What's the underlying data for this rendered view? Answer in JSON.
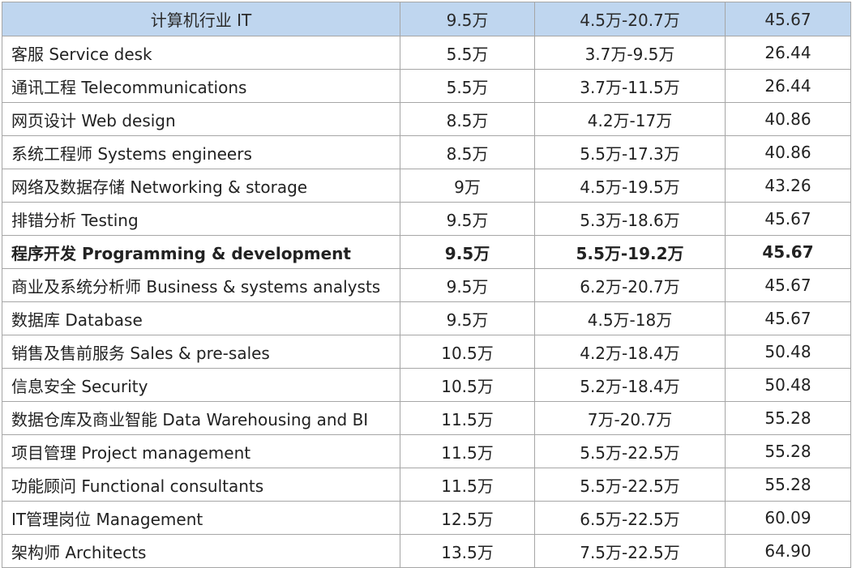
{
  "colors": {
    "header_background": "#bfd6ef",
    "border": "#a6a6a6",
    "text": "#222222"
  },
  "table": {
    "header": {
      "role": "计算机行业 IT",
      "salary": "9.5万",
      "range": "4.5万-20.7万",
      "index": "45.67"
    },
    "rows": [
      {
        "role": "客服 Service  desk",
        "salary": "5.5万",
        "range": "3.7万-9.5万",
        "index": "26.44",
        "bold": false
      },
      {
        "role": "通讯工程 Telecommunications",
        "salary": "5.5万",
        "range": "3.7万-11.5万",
        "index": "26.44",
        "bold": false
      },
      {
        "role": "网页设计 Web  design",
        "salary": "8.5万",
        "range": "4.2万-17万",
        "index": "40.86",
        "bold": false
      },
      {
        "role": "系统工程师 Systems  engineers",
        "salary": "8.5万",
        "range": "5.5万-17.3万",
        "index": "40.86",
        "bold": false
      },
      {
        "role": "网络及数据存储 Networking  & storage",
        "salary": "9万",
        "range": "4.5万-19.5万",
        "index": "43.26",
        "bold": false
      },
      {
        "role": "排错分析 Testing",
        "salary": "9.5万",
        "range": "5.3万-18.6万",
        "index": "45.67",
        "bold": false
      },
      {
        "role": "程序开发  Programming & development",
        "salary": "9.5万",
        "range": "5.5万-19.2万",
        "index": "45.67",
        "bold": true
      },
      {
        "role": "商业及系统分析师 Business  & systems analysts",
        "salary": "9.5万",
        "range": "6.2万-20.7万",
        "index": "45.67",
        "bold": false
      },
      {
        "role": "数据库 Database",
        "salary": "9.5万",
        "range": "4.5万-18万",
        "index": "45.67",
        "bold": false
      },
      {
        "role": "销售及售前服务 Sales  & pre-sales",
        "salary": "10.5万",
        "range": "4.2万-18.4万",
        "index": "50.48",
        "bold": false
      },
      {
        "role": "信息安全 Security",
        "salary": "10.5万",
        "range": "5.2万-18.4万",
        "index": "50.48",
        "bold": false
      },
      {
        "role": "数据仓库及商业智能  Data Warehousing and BI",
        "salary": "11.5万",
        "range": "7万-20.7万",
        "index": "55.28",
        "bold": false
      },
      {
        "role": "项目管理 Project  management",
        "salary": "11.5万",
        "range": "5.5万-22.5万",
        "index": "55.28",
        "bold": false
      },
      {
        "role": "功能顾问 Functional  consultants",
        "salary": "11.5万",
        "range": "5.5万-22.5万",
        "index": "55.28",
        "bold": false
      },
      {
        "role": "IT管理岗位  Management",
        "salary": "12.5万",
        "range": "6.5万-22.5万",
        "index": "60.09",
        "bold": false
      },
      {
        "role": "架构师 Architects",
        "salary": "13.5万",
        "range": "7.5万-22.5万",
        "index": "64.90",
        "bold": false
      }
    ]
  }
}
